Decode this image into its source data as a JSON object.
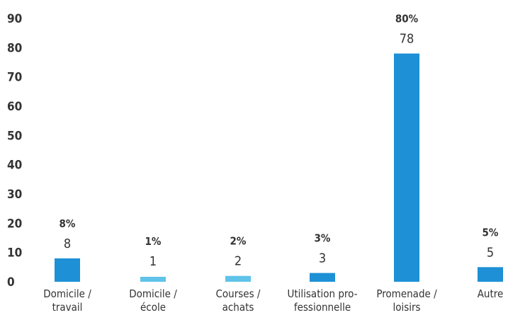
{
  "chart_data": {
    "type": "bar",
    "title": "",
    "xlabel": "",
    "ylabel": "",
    "ylim": [
      0,
      90
    ],
    "yticks": [
      0,
      10,
      20,
      30,
      40,
      50,
      60,
      70,
      80,
      90
    ],
    "categories": [
      [
        "Domicile /",
        "travail"
      ],
      [
        "Domicile /",
        "école"
      ],
      [
        "Courses /",
        "achats"
      ],
      [
        "Utilisation pro-",
        "fessionnelle"
      ],
      [
        "Promenade /",
        "loisirs"
      ],
      [
        "Autre"
      ]
    ],
    "values": [
      8,
      1,
      2,
      3,
      78,
      5
    ],
    "value_labels": [
      "8",
      "1",
      "2",
      "3",
      "78",
      "5"
    ],
    "percent_labels": [
      "8%",
      "1%",
      "2%",
      "3%",
      "80%",
      "5%"
    ],
    "colors": {
      "bar": "#1e90d6",
      "bar_light": "#5fc3ea",
      "text": "#333333"
    },
    "grid": false,
    "legend": "none"
  }
}
